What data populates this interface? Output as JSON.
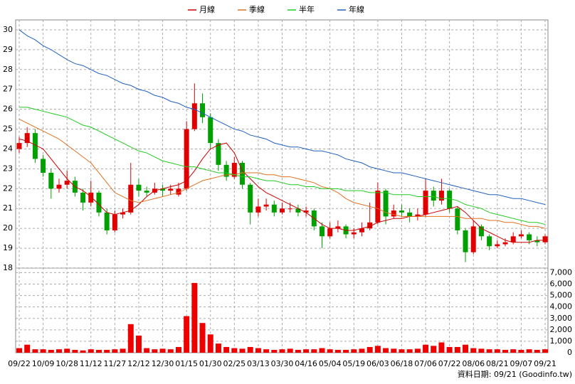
{
  "chart_data": {
    "type": "candlestick",
    "grid": true,
    "categories": [
      "09/22",
      null,
      null,
      "10/09",
      null,
      null,
      "10/28",
      null,
      null,
      "11/12",
      null,
      null,
      "11/27",
      null,
      null,
      "12/12",
      null,
      null,
      "12/30",
      null,
      null,
      "01/15",
      null,
      null,
      "01/30",
      null,
      null,
      "02/25",
      null,
      null,
      "03/13",
      null,
      null,
      "03/30",
      null,
      null,
      "04/16",
      null,
      null,
      "05/04",
      null,
      null,
      "05/19",
      null,
      null,
      "06/03",
      null,
      null,
      "06/18",
      null,
      null,
      "07/06",
      null,
      null,
      "07/22",
      null,
      null,
      "08/06",
      null,
      null,
      "08/21",
      null,
      null,
      "09/07",
      null,
      null,
      "09/21"
    ],
    "open": [
      24.0,
      24.3,
      24.8,
      23.5,
      22.8,
      22.0,
      22.2,
      22.4,
      21.8,
      21.3,
      21.8,
      20.8,
      19.9,
      20.7,
      20.8,
      22.2,
      21.9,
      21.8,
      22.0,
      21.9,
      21.7,
      22.0,
      25.0,
      26.3,
      25.6,
      24.3,
      23.2,
      22.6,
      23.3,
      22.2,
      20.8,
      21.1,
      21.2,
      20.8,
      21.0,
      21.0,
      20.8,
      20.9,
      20.1,
      19.6,
      20.0,
      20.1,
      19.7,
      19.8,
      20.0,
      20.3,
      21.9,
      20.6,
      20.9,
      20.8,
      20.6,
      20.7,
      21.9,
      21.4,
      21.9,
      21.0,
      19.9,
      18.8,
      20.1,
      19.6,
      19.1,
      19.2,
      19.3,
      19.6,
      19.7,
      19.4,
      19.3
    ],
    "high": [
      24.6,
      25.1,
      25.0,
      23.7,
      23.0,
      22.5,
      22.9,
      22.6,
      22.0,
      22.4,
      21.9,
      21.0,
      20.9,
      21.0,
      23.3,
      22.5,
      22.1,
      22.3,
      22.2,
      22.2,
      22.3,
      25.4,
      27.3,
      26.8,
      25.8,
      24.5,
      23.4,
      23.6,
      23.4,
      22.3,
      21.5,
      21.5,
      21.4,
      21.3,
      21.3,
      21.2,
      21.1,
      21.0,
      20.3,
      20.3,
      20.4,
      20.2,
      20.0,
      20.3,
      21.3,
      22.3,
      22.0,
      21.2,
      21.2,
      21.0,
      21.0,
      22.5,
      22.1,
      22.5,
      22.0,
      21.1,
      20.0,
      20.4,
      20.2,
      19.7,
      19.4,
      19.5,
      19.8,
      19.9,
      19.8,
      19.6,
      19.7
    ],
    "low": [
      23.8,
      24.1,
      23.3,
      22.6,
      21.5,
      21.8,
      22.0,
      21.6,
      20.9,
      21.1,
      20.6,
      19.7,
      19.8,
      20.5,
      20.7,
      21.6,
      21.6,
      21.7,
      21.6,
      21.7,
      21.6,
      21.9,
      24.9,
      25.3,
      24.0,
      22.9,
      22.4,
      22.5,
      22.0,
      20.2,
      20.6,
      20.9,
      20.6,
      20.7,
      20.8,
      20.6,
      20.6,
      19.9,
      19.0,
      19.5,
      19.8,
      19.5,
      19.5,
      19.6,
      19.9,
      20.2,
      20.2,
      20.5,
      20.6,
      20.3,
      20.4,
      20.6,
      21.1,
      21.2,
      20.8,
      19.7,
      18.3,
      18.7,
      19.4,
      18.9,
      19.0,
      19.1,
      19.2,
      19.5,
      19.2,
      19.1,
      19.2
    ],
    "close": [
      24.3,
      24.8,
      23.5,
      22.8,
      22.0,
      22.2,
      22.4,
      21.8,
      21.3,
      21.8,
      20.8,
      19.9,
      20.7,
      20.8,
      22.2,
      21.9,
      21.8,
      22.0,
      21.9,
      22.0,
      22.0,
      25.0,
      26.3,
      25.6,
      24.3,
      23.2,
      22.6,
      23.3,
      22.2,
      20.8,
      21.1,
      21.2,
      20.8,
      21.0,
      21.0,
      20.8,
      20.9,
      20.1,
      19.6,
      20.0,
      20.1,
      19.7,
      19.8,
      20.0,
      20.3,
      21.9,
      20.6,
      20.9,
      20.8,
      20.6,
      20.7,
      21.9,
      21.4,
      21.9,
      21.0,
      19.9,
      18.8,
      20.1,
      19.6,
      19.1,
      19.2,
      19.3,
      19.6,
      19.7,
      19.4,
      19.3,
      19.6
    ],
    "up_color": "#e00000",
    "down_color": "#00a000",
    "series": [
      {
        "name": "月線",
        "color": "#cc0000",
        "values": [
          24.5,
          24.4,
          24.2,
          24.0,
          23.5,
          23.0,
          22.5,
          22.1,
          21.9,
          21.6,
          21.2,
          20.8,
          20.7,
          20.8,
          20.9,
          21.2,
          21.6,
          21.9,
          22.0,
          22.1,
          22.2,
          22.4,
          22.9,
          23.5,
          24.0,
          24.2,
          24.3,
          23.8,
          22.9,
          22.5,
          22.1,
          21.8,
          21.6,
          21.4,
          21.2,
          21.0,
          20.8,
          20.5,
          20.2,
          20.0,
          20.0,
          19.9,
          19.9,
          20.0,
          20.1,
          20.3,
          20.4,
          20.5,
          20.5,
          20.6,
          20.6,
          20.7,
          20.8,
          20.9,
          21.0,
          21.1,
          20.8,
          20.4,
          20.0,
          19.8,
          19.6,
          19.4,
          19.3,
          19.3,
          19.3,
          19.4,
          19.4
        ]
      },
      {
        "name": "季線",
        "color": "#e07020",
        "values": [
          25.5,
          25.3,
          25.1,
          24.9,
          24.7,
          24.5,
          24.2,
          23.9,
          23.6,
          23.3,
          22.8,
          22.3,
          21.8,
          21.6,
          21.4,
          21.3,
          21.4,
          21.5,
          21.6,
          21.7,
          21.8,
          22.0,
          22.2,
          22.4,
          22.5,
          22.6,
          22.7,
          22.7,
          22.8,
          22.8,
          22.8,
          22.7,
          22.7,
          22.6,
          22.6,
          22.5,
          22.4,
          22.3,
          22.1,
          22.0,
          21.8,
          21.5,
          21.3,
          21.2,
          21.1,
          21.0,
          20.8,
          20.7,
          20.6,
          20.6,
          20.6,
          20.6,
          20.6,
          20.6,
          20.6,
          20.6,
          20.5,
          20.5,
          20.5,
          20.4,
          20.4,
          20.3,
          20.3,
          20.2,
          20.1,
          20.1,
          20.0
        ]
      },
      {
        "name": "半年",
        "color": "#20cc20",
        "values": [
          26.1,
          26.1,
          26.0,
          25.9,
          25.8,
          25.7,
          25.6,
          25.4,
          25.2,
          25.1,
          24.9,
          24.7,
          24.5,
          24.3,
          24.1,
          23.9,
          23.8,
          23.6,
          23.4,
          23.3,
          23.2,
          23.1,
          23.1,
          23.0,
          22.9,
          22.8,
          22.8,
          22.7,
          22.6,
          22.6,
          22.5,
          22.4,
          22.4,
          22.3,
          22.2,
          22.2,
          22.1,
          22.1,
          22.0,
          22.0,
          22.0,
          21.9,
          21.9,
          21.9,
          21.8,
          21.8,
          21.8,
          21.7,
          21.7,
          21.7,
          21.6,
          21.6,
          21.6,
          21.5,
          21.5,
          21.4,
          21.2,
          21.1,
          21.0,
          20.8,
          20.7,
          20.6,
          20.5,
          20.4,
          20.3,
          20.3,
          20.2
        ]
      },
      {
        "name": "年線",
        "color": "#2060c0",
        "values": [
          30.0,
          29.7,
          29.5,
          29.2,
          29.0,
          28.75,
          28.5,
          28.3,
          28.2,
          28.0,
          27.8,
          27.7,
          27.5,
          27.3,
          27.2,
          27.0,
          26.9,
          26.7,
          26.6,
          26.4,
          26.3,
          26.1,
          26.0,
          25.8,
          25.6,
          25.4,
          25.2,
          25.0,
          24.9,
          24.7,
          24.6,
          24.5,
          24.3,
          24.2,
          24.1,
          24.1,
          24.0,
          23.9,
          23.9,
          23.8,
          23.7,
          23.5,
          23.4,
          23.3,
          23.1,
          23.0,
          22.9,
          22.8,
          22.8,
          22.7,
          22.6,
          22.5,
          22.4,
          22.3,
          22.2,
          22.1,
          22.0,
          21.9,
          21.8,
          21.7,
          21.7,
          21.6,
          21.5,
          21.5,
          21.4,
          21.3,
          21.2
        ]
      }
    ],
    "ylim": [
      18,
      30.5
    ],
    "yticks": [
      18,
      19,
      20,
      21,
      22,
      23,
      24,
      25,
      26,
      27,
      28,
      29,
      30
    ],
    "volume": {
      "color": "#ee0000",
      "values": [
        400,
        700,
        300,
        300,
        250,
        300,
        350,
        250,
        200,
        300,
        250,
        250,
        300,
        350,
        2500,
        1500,
        400,
        300,
        350,
        300,
        500,
        3200,
        6100,
        2600,
        1600,
        800,
        500,
        400,
        350,
        500,
        400,
        300,
        250,
        300,
        350,
        250,
        300,
        300,
        400,
        300,
        250,
        250,
        300,
        350,
        500,
        600,
        400,
        350,
        300,
        300,
        350,
        700,
        600,
        900,
        500,
        500,
        700,
        400,
        350,
        300,
        300,
        250,
        300,
        250,
        300,
        250,
        300
      ],
      "ylim": [
        0,
        7400
      ],
      "yticks": [
        0,
        {
          "value": 1000,
          "label": "1,000"
        },
        {
          "value": 2000,
          "label": "2,000"
        },
        {
          "value": 3000,
          "label": "3,000"
        },
        {
          "value": 4000,
          "label": "4,000"
        },
        {
          "value": 5000,
          "label": "5,000"
        },
        {
          "value": 6000,
          "label": "6,000"
        },
        {
          "value": 7000,
          "label": "7,000"
        }
      ]
    },
    "footer": "資料日期: 09/21  (Goodinfo.tw)"
  }
}
